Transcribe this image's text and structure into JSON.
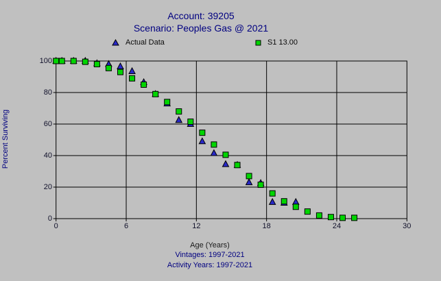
{
  "colors": {
    "background": "#c0c0c0",
    "grid": "#000000",
    "actual_series": "#2828c8",
    "s1_series": "#00d500",
    "title_text": "#000080",
    "tick_text": "#10102a"
  },
  "header": {
    "title_line1": "Account: 39205",
    "title_line2": "Scenario: Peoples Gas @ 2021"
  },
  "legend": {
    "items": [
      {
        "label": "Actual Data",
        "marker": "triangle",
        "color": "#2828c8"
      },
      {
        "label": "S1 13.00",
        "marker": "square",
        "color": "#00d500"
      }
    ]
  },
  "axes": {
    "ylabel": "Percent Surviving",
    "xlabel": "Age (Years)"
  },
  "footer": {
    "vintages": "Vintages: 1997-2021",
    "activity_years": "Activity Years: 1997-2021"
  },
  "chart_data": {
    "type": "scatter",
    "title": "Account: 39205",
    "subtitle": "Scenario: Peoples Gas @ 2021",
    "xlabel": "Age (Years)",
    "ylabel": "Percent Surviving",
    "xlim": [
      0,
      30
    ],
    "ylim": [
      0,
      100
    ],
    "x_ticks": [
      0,
      6,
      12,
      18,
      24,
      30
    ],
    "y_ticks": [
      0,
      20,
      40,
      60,
      80,
      100
    ],
    "grid": true,
    "legend_position": "top",
    "series": [
      {
        "name": "Actual Data",
        "marker": "triangle",
        "color": "#2828c8",
        "points": [
          [
            0,
            100
          ],
          [
            0.5,
            100
          ],
          [
            1.5,
            100
          ],
          [
            2.5,
            100
          ],
          [
            3.5,
            98.5
          ],
          [
            4.5,
            98
          ],
          [
            5.5,
            96.5
          ],
          [
            6.5,
            93.5
          ],
          [
            7.5,
            86.5
          ],
          [
            8.5,
            79
          ],
          [
            9.5,
            73
          ],
          [
            10.5,
            62.5
          ],
          [
            11.5,
            60
          ],
          [
            12.5,
            49
          ],
          [
            13.5,
            41.5
          ],
          [
            14.5,
            34.5
          ],
          [
            15.5,
            34
          ],
          [
            16.5,
            23
          ],
          [
            17.5,
            22.5
          ],
          [
            18.5,
            10.5
          ],
          [
            19.5,
            10
          ],
          [
            20.5,
            10.5
          ]
        ]
      },
      {
        "name": "S1 13.00",
        "marker": "square",
        "color": "#00d500",
        "points": [
          [
            0,
            100
          ],
          [
            0.5,
            100
          ],
          [
            1.5,
            100
          ],
          [
            2.5,
            99.5
          ],
          [
            3.5,
            98
          ],
          [
            4.5,
            95.5
          ],
          [
            5.5,
            93
          ],
          [
            6.5,
            89
          ],
          [
            7.5,
            85
          ],
          [
            8.5,
            79
          ],
          [
            9.5,
            74
          ],
          [
            10.5,
            68
          ],
          [
            11.5,
            61.5
          ],
          [
            12.5,
            54.5
          ],
          [
            13.5,
            47
          ],
          [
            14.5,
            40.5
          ],
          [
            15.5,
            34
          ],
          [
            16.5,
            27
          ],
          [
            17.5,
            21.5
          ],
          [
            18.5,
            16
          ],
          [
            19.5,
            11
          ],
          [
            20.5,
            7.5
          ],
          [
            21.5,
            4.5
          ],
          [
            22.5,
            2
          ],
          [
            23.5,
            1
          ],
          [
            24.5,
            0.5
          ],
          [
            25.5,
            0.5
          ]
        ]
      }
    ]
  }
}
